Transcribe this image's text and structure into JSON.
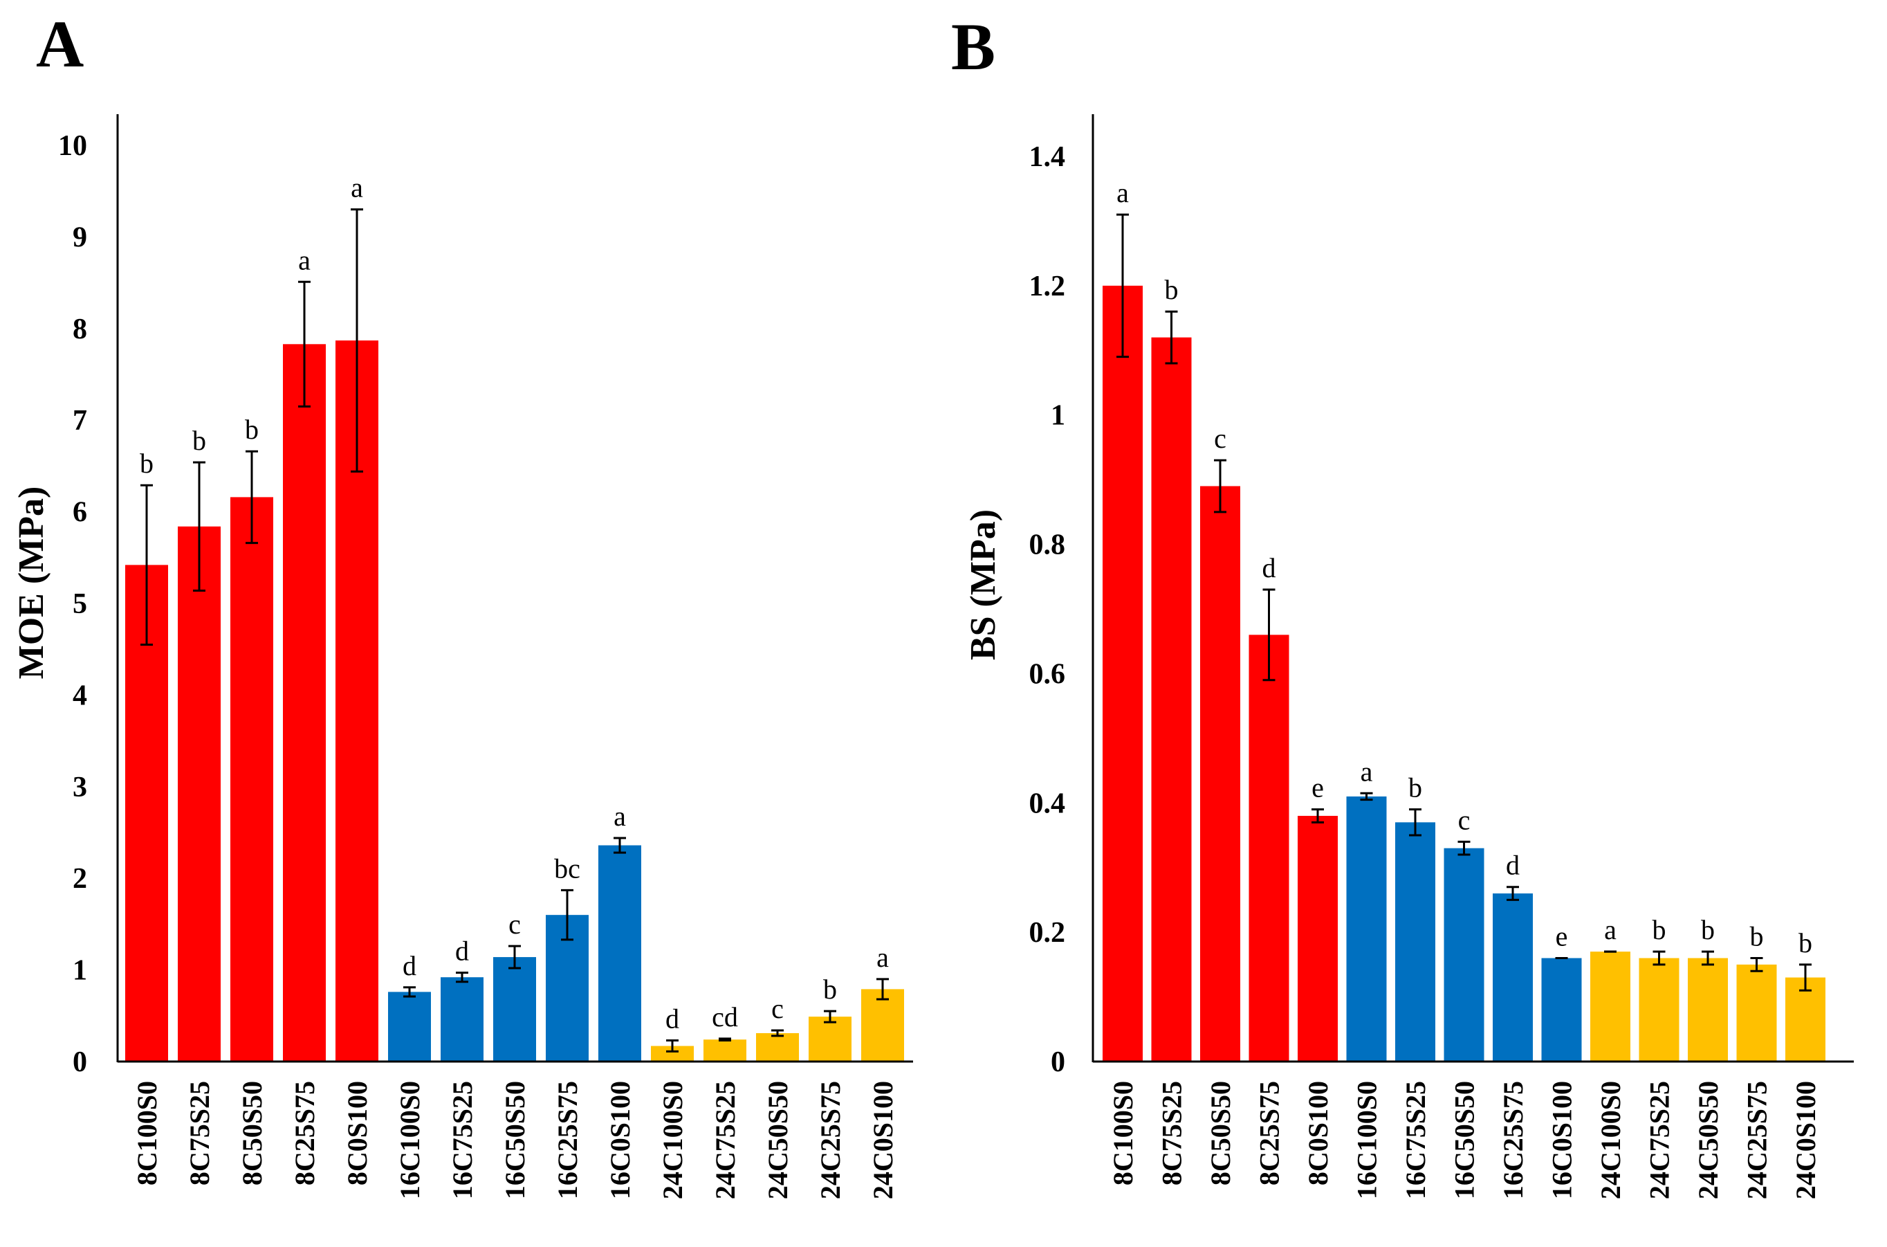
{
  "chart_data": [
    {
      "type": "bar",
      "panel_label": "A",
      "ylabel": "MOE (MPa)",
      "xlabel": "",
      "ylim": [
        0,
        10
      ],
      "yticks": [
        "0",
        "1",
        "2",
        "3",
        "4",
        "5",
        "6",
        "7",
        "8",
        "9",
        "10"
      ],
      "grid": false,
      "categories": [
        "8C100S0",
        "8C75S25",
        "8C50S50",
        "8C25S75",
        "8C0S100",
        "16C100S0",
        "16C75S25",
        "16C50S50",
        "16C25S75",
        "16C0S100",
        "24C100S0",
        "24C75S25",
        "24C50S50",
        "24C25S75",
        "24C0S100"
      ],
      "values": [
        5.42,
        5.84,
        6.16,
        7.83,
        7.87,
        0.76,
        0.92,
        1.14,
        1.6,
        2.36,
        0.17,
        0.24,
        0.31,
        0.49,
        0.79
      ],
      "errors": [
        0.87,
        0.7,
        0.5,
        0.68,
        1.43,
        0.05,
        0.05,
        0.12,
        0.27,
        0.08,
        0.06,
        0.01,
        0.03,
        0.06,
        0.11
      ],
      "labels": [
        "b",
        "b",
        "b",
        "a",
        "a",
        "d",
        "d",
        "c",
        "bc",
        "a",
        "d",
        "cd",
        "c",
        "b",
        "a"
      ],
      "groups": [
        "8C",
        "8C",
        "8C",
        "8C",
        "8C",
        "16C",
        "16C",
        "16C",
        "16C",
        "16C",
        "24C",
        "24C",
        "24C",
        "24C",
        "24C"
      ],
      "group_colors": {
        "8C": "#ff0000",
        "16C": "#0070c0",
        "24C": "#ffc000"
      }
    },
    {
      "type": "bar",
      "panel_label": "B",
      "ylabel": "BS (MPa)",
      "xlabel": "",
      "ylim": [
        0,
        1.45
      ],
      "yticks": [
        "0",
        "0.2",
        "0.4",
        "0.6",
        "0.8",
        "1",
        "1.2",
        "1.4"
      ],
      "ytick_values": [
        0,
        0.2,
        0.4,
        0.6,
        0.8,
        1.0,
        1.2,
        1.4
      ],
      "grid": false,
      "categories": [
        "8C100S0",
        "8C75S25",
        "8C50S50",
        "8C25S75",
        "8C0S100",
        "16C100S0",
        "16C75S25",
        "16C50S50",
        "16C25S75",
        "16C0S100",
        "24C100S0",
        "24C75S25",
        "24C50S50",
        "24C25S75",
        "24C0S100"
      ],
      "values": [
        1.2,
        1.12,
        0.89,
        0.66,
        0.38,
        0.41,
        0.37,
        0.33,
        0.26,
        0.16,
        0.17,
        0.16,
        0.16,
        0.15,
        0.13
      ],
      "errors": [
        0.11,
        0.04,
        0.04,
        0.07,
        0.01,
        0.005,
        0.02,
        0.01,
        0.01,
        0.0,
        0.0,
        0.01,
        0.01,
        0.01,
        0.02
      ],
      "labels": [
        "a",
        "b",
        "c",
        "d",
        "e",
        "a",
        "b",
        "c",
        "d",
        "e",
        "a",
        "b",
        "b",
        "b",
        "b"
      ],
      "groups": [
        "8C",
        "8C",
        "8C",
        "8C",
        "8C",
        "16C",
        "16C",
        "16C",
        "16C",
        "16C",
        "24C",
        "24C",
        "24C",
        "24C",
        "24C"
      ],
      "group_colors": {
        "8C": "#ff0000",
        "16C": "#0070c0",
        "24C": "#ffc000"
      }
    }
  ]
}
